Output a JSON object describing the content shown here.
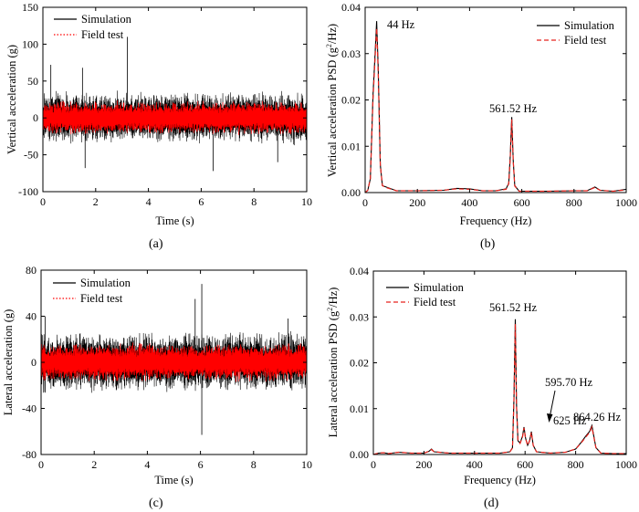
{
  "chart_data": [
    {
      "panel": "(a)",
      "type": "line",
      "xlabel": "Time (s)",
      "ylabel": "Vertical acceleration (g)",
      "xlim": [
        0,
        10
      ],
      "ylim": [
        -100,
        150
      ],
      "xticks": [
        0,
        2,
        4,
        6,
        8,
        10
      ],
      "yticks": [
        -100,
        -50,
        0,
        50,
        100,
        150
      ],
      "legend_position": "top-right",
      "series": [
        {
          "name": "Simulation",
          "color": "#000000",
          "style": "solid",
          "amplitude_envelope_g": [
            -70,
            110
          ],
          "peaks": [
            {
              "x": 3.2,
              "y": 110
            },
            {
              "x": 6.45,
              "y": -72
            },
            {
              "x": 1.5,
              "y": 68
            },
            {
              "x": 1.6,
              "y": -68
            },
            {
              "x": 0.3,
              "y": 72
            },
            {
              "x": 8.9,
              "y": -60
            }
          ]
        },
        {
          "name": "Field test",
          "color": "#ff0000",
          "style": "dotted",
          "amplitude_envelope_g": [
            -40,
            40
          ]
        }
      ]
    },
    {
      "panel": "(b)",
      "type": "line",
      "xlabel": "Frequency (Hz)",
      "ylabel_parts": [
        "Vertical acceleration PSD (",
        "g",
        "2",
        "/Hz)"
      ],
      "xlim": [
        0,
        1000
      ],
      "ylim": [
        0,
        0.04
      ],
      "xticks": [
        0,
        200,
        400,
        600,
        800,
        1000
      ],
      "yticks": [
        "0.00",
        "0.01",
        "0.02",
        "0.03",
        "0.04"
      ],
      "legend_position": "top-right",
      "annotations": [
        "44 Hz",
        "561.52 Hz"
      ],
      "series": [
        {
          "name": "Simulation",
          "color": "#000000",
          "style": "solid",
          "x": [
            0,
            10,
            20,
            30,
            38,
            44,
            50,
            58,
            66,
            80,
            120,
            200,
            300,
            350,
            400,
            450,
            500,
            540,
            550,
            556,
            561.52,
            567,
            573,
            590,
            700,
            800,
            850,
            880,
            900,
            950,
            1000
          ],
          "y": [
            0.0,
            0.0005,
            0.003,
            0.021,
            0.03,
            0.037,
            0.027,
            0.006,
            0.0015,
            0.0012,
            0.0004,
            0.0004,
            0.0005,
            0.0009,
            0.0008,
            0.0004,
            0.0004,
            0.0008,
            0.002,
            0.008,
            0.0163,
            0.007,
            0.0015,
            0.0003,
            0.0003,
            0.0004,
            0.0004,
            0.0012,
            0.0005,
            0.0003,
            0.0007
          ]
        },
        {
          "name": "Field test",
          "color": "#e8231d",
          "style": "dashed",
          "x": [
            0,
            10,
            20,
            30,
            38,
            44,
            50,
            58,
            66,
            80,
            120,
            200,
            300,
            350,
            400,
            450,
            500,
            540,
            550,
            556,
            561.52,
            567,
            573,
            590,
            700,
            800,
            850,
            880,
            900,
            950,
            1000
          ],
          "y": [
            0.0,
            0.0005,
            0.003,
            0.02,
            0.029,
            0.0355,
            0.026,
            0.006,
            0.0015,
            0.0011,
            0.0004,
            0.0004,
            0.0005,
            0.0008,
            0.0007,
            0.0004,
            0.0004,
            0.0007,
            0.0019,
            0.0075,
            0.0158,
            0.0068,
            0.0014,
            0.0003,
            0.0003,
            0.0004,
            0.0004,
            0.0011,
            0.0005,
            0.0003,
            0.0006
          ]
        }
      ]
    },
    {
      "panel": "(c)",
      "type": "line",
      "xlabel": "Time (s)",
      "ylabel": "Lateral acceleration (g)",
      "xlim": [
        0,
        10
      ],
      "ylim": [
        -80,
        80
      ],
      "xticks": [
        0,
        2,
        4,
        6,
        8,
        10
      ],
      "yticks": [
        -80,
        -40,
        0,
        40,
        80
      ],
      "legend_position": "top-left",
      "series": [
        {
          "name": "Simulation",
          "color": "#000000",
          "style": "solid",
          "amplitude_envelope_g": [
            -63,
            68
          ],
          "peaks": [
            {
              "x": 6.05,
              "y": 68
            },
            {
              "x": 6.05,
              "y": -63
            },
            {
              "x": 5.8,
              "y": 55
            },
            {
              "x": 0.15,
              "y": 40
            },
            {
              "x": 9.3,
              "y": 38
            }
          ]
        },
        {
          "name": "Field test",
          "color": "#ff0000",
          "style": "dotted",
          "amplitude_envelope_g": [
            -30,
            30
          ]
        }
      ]
    },
    {
      "panel": "(d)",
      "type": "line",
      "xlabel": "Frequency (Hz)",
      "ylabel_parts": [
        "Lateral acceleration PSD (",
        "g",
        "2",
        "/Hz)"
      ],
      "xlim": [
        0,
        1000
      ],
      "ylim": [
        0,
        0.04
      ],
      "xticks": [
        0,
        200,
        400,
        600,
        800,
        1000
      ],
      "yticks": [
        "0.00",
        "0.01",
        "0.02",
        "0.03",
        "0.04"
      ],
      "legend_position": "top-left",
      "annotations": [
        "561.52 Hz",
        "595.70 Hz",
        "625 Hz",
        "864.26 Hz"
      ],
      "series": [
        {
          "name": "Simulation",
          "color": "#000000",
          "style": "solid",
          "x": [
            0,
            20,
            40,
            60,
            100,
            150,
            200,
            220,
            230,
            240,
            300,
            400,
            500,
            540,
            550,
            556,
            561.52,
            566,
            572,
            580,
            590,
            595.7,
            602,
            610,
            618,
            625,
            632,
            645,
            700,
            760,
            800,
            820,
            840,
            855,
            864.26,
            872,
            880,
            900,
            950,
            1000
          ],
          "y": [
            0.0,
            0.0003,
            0.0004,
            0.0002,
            0.0005,
            0.0003,
            0.0003,
            0.0007,
            0.0012,
            0.0006,
            0.0003,
            0.0003,
            0.0003,
            0.0006,
            0.0015,
            0.012,
            0.0295,
            0.011,
            0.003,
            0.0025,
            0.004,
            0.006,
            0.0035,
            0.002,
            0.003,
            0.005,
            0.002,
            0.0006,
            0.0003,
            0.0005,
            0.0012,
            0.0025,
            0.004,
            0.005,
            0.0063,
            0.004,
            0.0015,
            0.0003,
            0.0002,
            0.0002
          ]
        },
        {
          "name": "Field test",
          "color": "#e8231d",
          "style": "dashed",
          "x": [
            0,
            20,
            40,
            60,
            100,
            150,
            200,
            220,
            230,
            240,
            300,
            400,
            500,
            540,
            550,
            556,
            561.52,
            566,
            572,
            580,
            590,
            595.7,
            602,
            610,
            618,
            625,
            632,
            645,
            700,
            760,
            800,
            820,
            840,
            855,
            864.26,
            872,
            880,
            900,
            950,
            1000
          ],
          "y": [
            0.0,
            0.0003,
            0.0004,
            0.0002,
            0.0005,
            0.0003,
            0.0003,
            0.0007,
            0.0011,
            0.0006,
            0.0003,
            0.0003,
            0.0003,
            0.0006,
            0.0014,
            0.0115,
            0.0285,
            0.0105,
            0.003,
            0.0024,
            0.0038,
            0.0058,
            0.0034,
            0.002,
            0.003,
            0.0048,
            0.002,
            0.0006,
            0.0003,
            0.0005,
            0.0012,
            0.0024,
            0.0038,
            0.0048,
            0.006,
            0.0038,
            0.0015,
            0.0003,
            0.0002,
            0.0002
          ]
        }
      ]
    }
  ]
}
